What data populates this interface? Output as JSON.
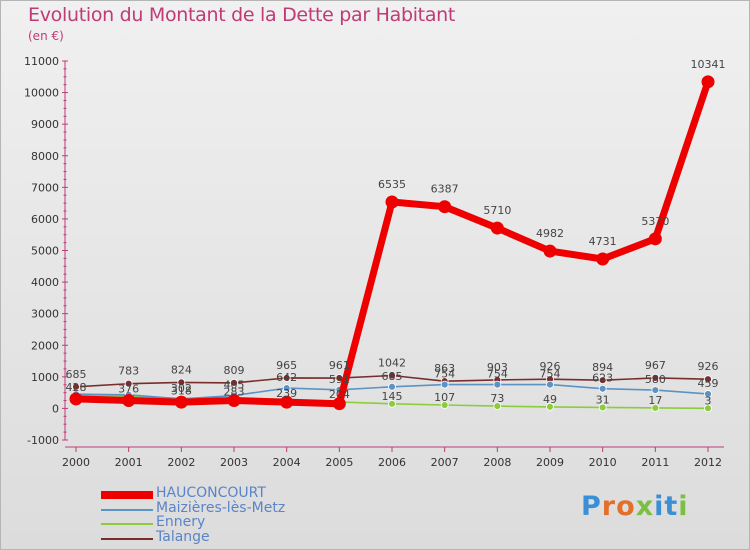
{
  "chart_data": {
    "type": "line",
    "title": "Evolution du Montant de la Dette par Habitant",
    "subtitle": "(en €)",
    "xlabel": "",
    "ylabel": "",
    "categories": [
      "2000",
      "2001",
      "2002",
      "2003",
      "2004",
      "2005",
      "2006",
      "2007",
      "2008",
      "2009",
      "2010",
      "2011",
      "2012"
    ],
    "ylim": [
      -1000,
      11000
    ],
    "yticks": [
      "-1000",
      "0",
      "1000",
      "2000",
      "3000",
      "4000",
      "5000",
      "6000",
      "7000",
      "8000",
      "9000",
      "10000",
      "11000"
    ],
    "grid": false,
    "series": [
      {
        "name": "HAUCONCOURT",
        "color": "#ee0000",
        "values": [
          300,
          250,
          200,
          250,
          200,
          150,
          6535,
          6387,
          5710,
          4982,
          4731,
          5370,
          10341
        ],
        "labels": [
          "",
          "",
          "",
          "",
          "",
          "",
          "6535",
          "6387",
          "5710",
          "4982",
          "4731",
          "5370",
          "10341"
        ]
      },
      {
        "name": "Maizières-lès-Metz",
        "color": "#5b93c4",
        "values": [
          450,
          430,
          302,
          405,
          642,
          591,
          685,
          754,
          754,
          754,
          623,
          580,
          459
        ],
        "labels": [
          "",
          "",
          "302",
          "405",
          "642",
          "591",
          "685",
          "754",
          "754",
          "754",
          "623",
          "580",
          "459"
        ]
      },
      {
        "name": "Ennery",
        "color": "#8ccc3c",
        "values": [
          428,
          376,
          318,
          283,
          239,
          204,
          145,
          107,
          73,
          49,
          31,
          17,
          3
        ],
        "labels": [
          "428",
          "376",
          "318",
          "283",
          "239",
          "204",
          "145",
          "107",
          "73",
          "49",
          "31",
          "17",
          "3"
        ]
      },
      {
        "name": "Talange",
        "color": "#7a2d2d",
        "values": [
          685,
          783,
          824,
          809,
          965,
          961,
          1042,
          863,
          903,
          926,
          894,
          967,
          926
        ],
        "labels": [
          "685",
          "783",
          "824",
          "809",
          "965",
          "961",
          "1042",
          "863",
          "903",
          "926",
          "894",
          "967",
          "926"
        ]
      }
    ]
  },
  "legend": {
    "items": [
      "HAUCONCOURT",
      "Maizières-lès-Metz",
      "Ennery",
      "Talange"
    ]
  },
  "logo": {
    "text": "Proxiti",
    "letters": [
      "P",
      "r",
      "o",
      "x",
      "i",
      "t",
      "i"
    ],
    "colors": [
      "#3b8fd6",
      "#e2702a",
      "#e2702a",
      "#7bc043",
      "#3b8fd6",
      "#3b8fd6",
      "#7bc043"
    ]
  }
}
